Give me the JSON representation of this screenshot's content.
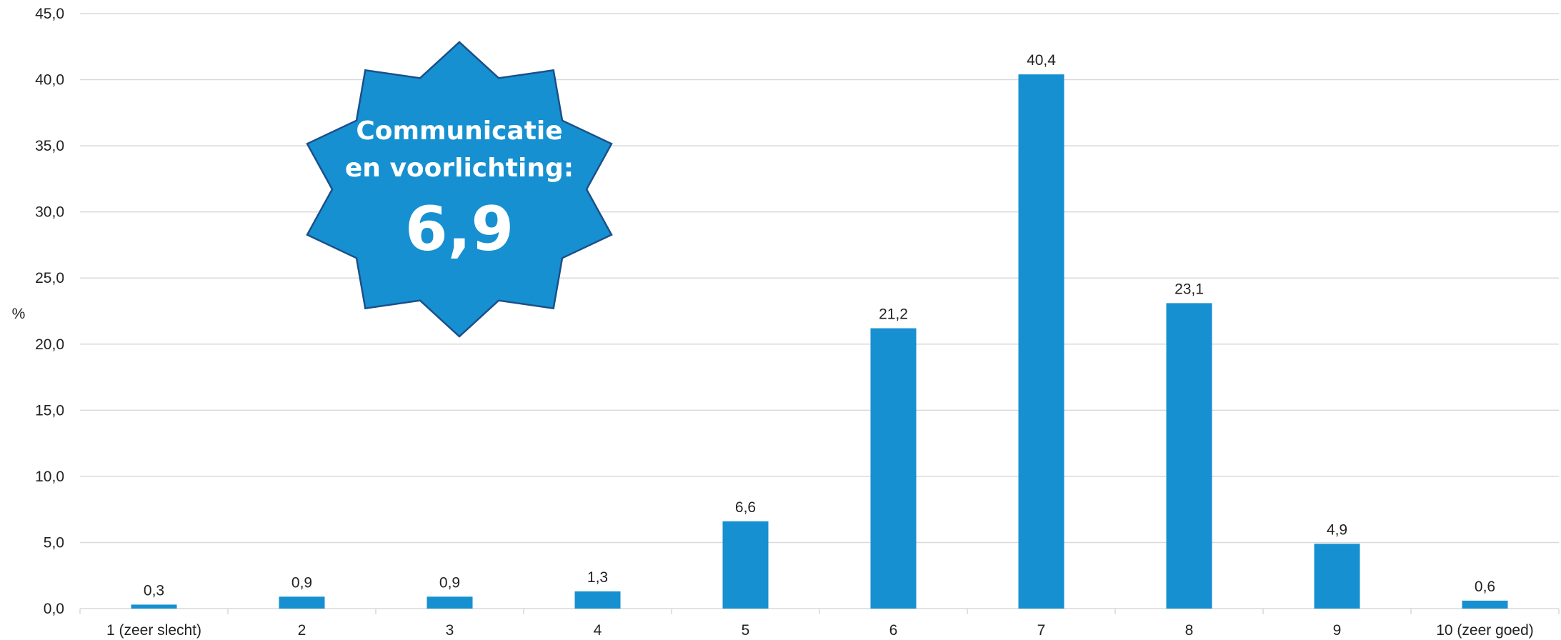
{
  "chart_data": {
    "type": "bar",
    "categories": [
      "1 (zeer slecht)",
      "2",
      "3",
      "4",
      "5",
      "6",
      "7",
      "8",
      "9",
      "10 (zeer goed)"
    ],
    "values": [
      0.3,
      0.9,
      0.9,
      1.3,
      6.6,
      21.2,
      40.4,
      23.1,
      4.9,
      0.6
    ],
    "value_labels": [
      "0,3",
      "0,9",
      "0,9",
      "1,3",
      "6,6",
      "21,2",
      "40,4",
      "23,1",
      "4,9",
      "0,6"
    ],
    "ylabel": "%",
    "ylim": [
      0,
      45
    ],
    "yticks": [
      0,
      5,
      10,
      15,
      20,
      25,
      30,
      35,
      40,
      45
    ],
    "ytick_labels": [
      "0,0",
      "5,0",
      "10,0",
      "15,0",
      "20,0",
      "25,0",
      "30,0",
      "35,0",
      "40,0",
      "45,0"
    ],
    "grid": true,
    "bar_color": "#1690D0",
    "grid_color": "#D9D9D9"
  },
  "badge": {
    "line1": "Communicatie",
    "line2": "en voorlichting:",
    "score": "6,9",
    "fill_color": "#1690D0",
    "stroke_color": "#1B4F8A"
  }
}
